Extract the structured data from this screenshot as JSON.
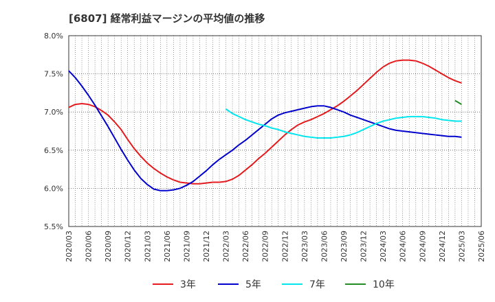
{
  "chart_data": {
    "type": "line",
    "title": "[6807]  経常利益マージンの平均値の推移",
    "xlabel": "",
    "ylabel": "",
    "ylim": [
      5.5,
      8.0
    ],
    "yticks": [
      "5.5%",
      "6.0%",
      "6.5%",
      "7.0%",
      "7.5%",
      "8.0%"
    ],
    "ytick_values": [
      5.5,
      6.0,
      6.5,
      7.0,
      7.5,
      8.0
    ],
    "xticks": [
      "2020/03",
      "2020/06",
      "2020/09",
      "2020/12",
      "2021/03",
      "2021/06",
      "2021/09",
      "2021/12",
      "2022/03",
      "2022/06",
      "2022/09",
      "2022/12",
      "2023/03",
      "2023/06",
      "2023/09",
      "2023/12",
      "2024/03",
      "2024/06",
      "2024/09",
      "2024/12",
      "2025/03",
      "2025/06"
    ],
    "grid": true,
    "legend_position": "bottom",
    "series": [
      {
        "name": "3年",
        "color": "#e41a1c",
        "x": [
          "2020/03",
          "2020/04",
          "2020/05",
          "2020/06",
          "2020/07",
          "2020/08",
          "2020/09",
          "2020/10",
          "2020/11",
          "2020/12",
          "2021/01",
          "2021/02",
          "2021/03",
          "2021/04",
          "2021/05",
          "2021/06",
          "2021/07",
          "2021/08",
          "2021/09",
          "2021/10",
          "2021/11",
          "2021/12",
          "2022/01",
          "2022/02",
          "2022/03",
          "2022/04",
          "2022/05",
          "2022/06",
          "2022/07",
          "2022/08",
          "2022/09",
          "2022/10",
          "2022/11",
          "2022/12",
          "2023/01",
          "2023/02",
          "2023/03",
          "2023/04",
          "2023/05",
          "2023/06",
          "2023/07",
          "2023/08",
          "2023/09",
          "2023/10",
          "2023/11",
          "2023/12",
          "2024/01",
          "2024/02",
          "2024/03",
          "2024/04",
          "2024/05",
          "2024/06",
          "2024/07",
          "2024/08",
          "2024/09",
          "2024/10",
          "2024/11",
          "2024/12",
          "2025/01",
          "2025/02",
          "2025/03"
        ],
        "values": [
          7.06,
          7.1,
          7.11,
          7.1,
          7.07,
          7.02,
          6.96,
          6.87,
          6.77,
          6.64,
          6.52,
          6.42,
          6.33,
          6.26,
          6.2,
          6.15,
          6.11,
          6.08,
          6.07,
          6.06,
          6.06,
          6.07,
          6.08,
          6.08,
          6.09,
          6.12,
          6.17,
          6.24,
          6.31,
          6.39,
          6.46,
          6.54,
          6.62,
          6.7,
          6.77,
          6.83,
          6.87,
          6.9,
          6.94,
          6.98,
          7.03,
          7.08,
          7.14,
          7.21,
          7.28,
          7.36,
          7.44,
          7.52,
          7.59,
          7.64,
          7.67,
          7.68,
          7.68,
          7.67,
          7.64,
          7.6,
          7.55,
          7.5,
          7.45,
          7.41,
          7.38
        ]
      },
      {
        "name": "5年",
        "color": "#0000cd",
        "x": [
          "2020/03",
          "2020/04",
          "2020/05",
          "2020/06",
          "2020/07",
          "2020/08",
          "2020/09",
          "2020/10",
          "2020/11",
          "2020/12",
          "2021/01",
          "2021/02",
          "2021/03",
          "2021/04",
          "2021/05",
          "2021/06",
          "2021/07",
          "2021/08",
          "2021/09",
          "2021/10",
          "2021/11",
          "2021/12",
          "2022/01",
          "2022/02",
          "2022/03",
          "2022/04",
          "2022/05",
          "2022/06",
          "2022/07",
          "2022/08",
          "2022/09",
          "2022/10",
          "2022/11",
          "2022/12",
          "2023/01",
          "2023/02",
          "2023/03",
          "2023/04",
          "2023/05",
          "2023/06",
          "2023/07",
          "2023/08",
          "2023/09",
          "2023/10",
          "2023/11",
          "2023/12",
          "2024/01",
          "2024/02",
          "2024/03",
          "2024/04",
          "2024/05",
          "2024/06",
          "2024/07",
          "2024/08",
          "2024/09",
          "2024/10",
          "2024/11",
          "2024/12",
          "2025/01",
          "2025/02",
          "2025/03"
        ],
        "values": [
          7.54,
          7.45,
          7.34,
          7.22,
          7.09,
          6.95,
          6.81,
          6.66,
          6.51,
          6.37,
          6.24,
          6.13,
          6.05,
          5.99,
          5.97,
          5.97,
          5.98,
          6.0,
          6.04,
          6.09,
          6.16,
          6.23,
          6.31,
          6.38,
          6.44,
          6.5,
          6.57,
          6.63,
          6.7,
          6.77,
          6.84,
          6.91,
          6.96,
          6.99,
          7.01,
          7.03,
          7.05,
          7.07,
          7.08,
          7.08,
          7.06,
          7.03,
          7.0,
          6.96,
          6.93,
          6.9,
          6.87,
          6.84,
          6.81,
          6.78,
          6.76,
          6.75,
          6.74,
          6.73,
          6.72,
          6.71,
          6.7,
          6.69,
          6.68,
          6.68,
          6.67
        ]
      },
      {
        "name": "7年",
        "color": "#00e5ee",
        "x": [
          "2022/03",
          "2022/04",
          "2022/05",
          "2022/06",
          "2022/07",
          "2022/08",
          "2022/09",
          "2022/10",
          "2022/11",
          "2022/12",
          "2023/01",
          "2023/02",
          "2023/03",
          "2023/04",
          "2023/05",
          "2023/06",
          "2023/07",
          "2023/08",
          "2023/09",
          "2023/10",
          "2023/11",
          "2023/12",
          "2024/01",
          "2024/02",
          "2024/03",
          "2024/04",
          "2024/05",
          "2024/06",
          "2024/07",
          "2024/08",
          "2024/09",
          "2024/10",
          "2024/11",
          "2024/12",
          "2025/01",
          "2025/02",
          "2025/03"
        ],
        "values": [
          7.04,
          6.98,
          6.94,
          6.9,
          6.87,
          6.84,
          6.82,
          6.79,
          6.77,
          6.74,
          6.72,
          6.7,
          6.68,
          6.67,
          6.66,
          6.66,
          6.66,
          6.67,
          6.68,
          6.7,
          6.73,
          6.77,
          6.81,
          6.85,
          6.88,
          6.9,
          6.92,
          6.93,
          6.94,
          6.94,
          6.94,
          6.93,
          6.92,
          6.9,
          6.89,
          6.88,
          6.88
        ]
      },
      {
        "name": "10年",
        "color": "#228b22",
        "x": [
          "2025/02",
          "2025/03"
        ],
        "values": [
          7.15,
          7.1
        ]
      }
    ]
  }
}
